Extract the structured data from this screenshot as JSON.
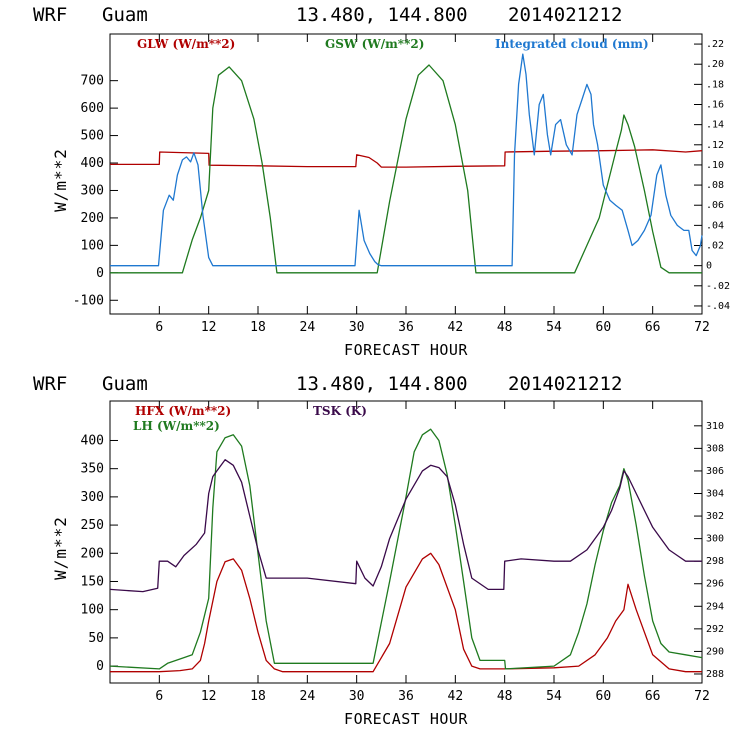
{
  "chart_data": [
    {
      "type": "line",
      "header": {
        "model": "WRF",
        "site": "Guam",
        "coords": "13.480, 144.800",
        "init": "2014021212"
      },
      "xlabel": "FORECAST HOUR",
      "ylabel": "W/m**2",
      "xlim": [
        0,
        72
      ],
      "ylim": [
        -150,
        870
      ],
      "xticks": [
        6,
        12,
        18,
        24,
        30,
        36,
        42,
        48,
        54,
        60,
        66,
        72
      ],
      "yticks": [
        -100,
        0,
        100,
        200,
        300,
        400,
        500,
        600,
        700
      ],
      "y2lim": [
        -0.048,
        0.23
      ],
      "y2ticks": [
        ".22",
        ".20",
        ".18",
        ".16",
        ".14",
        ".12",
        ".10",
        ".08",
        ".06",
        ".04",
        ".02",
        "0",
        "-.02",
        "-.04"
      ],
      "y2tick_values": [
        0.22,
        0.2,
        0.18,
        0.16,
        0.14,
        0.12,
        0.1,
        0.08,
        0.06,
        0.04,
        0.02,
        0,
        -0.02,
        -0.04
      ],
      "legend": [
        {
          "label": "GLW (W/m**2)",
          "color": "#b00000"
        },
        {
          "label": "GSW (W/m**2)",
          "color": "#1f7a1f"
        },
        {
          "label": "Integrated cloud (mm)",
          "color": "#1f78d0"
        }
      ],
      "series": [
        {
          "name": "GLW (W/m**2)",
          "color": "#b00000",
          "axis": "left",
          "x": [
            0,
            6,
            6.05,
            12,
            12.05,
            18,
            24,
            29.9,
            30,
            31.5,
            32.5,
            33,
            36,
            42,
            48,
            48.05,
            54,
            60,
            66,
            70,
            72
          ],
          "y": [
            395,
            395,
            440,
            435,
            392,
            390,
            387,
            387,
            430,
            420,
            400,
            385,
            385,
            388,
            390,
            440,
            443,
            445,
            448,
            440,
            445
          ]
        },
        {
          "name": "GSW (W/m**2)",
          "color": "#1f7a1f",
          "axis": "left",
          "x": [
            0,
            8.8,
            10,
            11,
            12,
            12.5,
            13.2,
            14.5,
            16,
            17.5,
            18.5,
            19.5,
            20.3,
            32.5,
            34,
            36,
            37.5,
            38.8,
            40.5,
            42,
            43.5,
            44.5,
            56.5,
            58,
            59.5,
            60.5,
            61.5,
            62.2,
            62.5,
            63,
            63.8,
            65,
            66,
            67,
            68,
            72
          ],
          "y": [
            0,
            0,
            120,
            200,
            300,
            600,
            720,
            750,
            700,
            560,
            400,
            200,
            0,
            0,
            260,
            560,
            720,
            757,
            700,
            540,
            300,
            0,
            0,
            100,
            200,
            320,
            440,
            520,
            575,
            540,
            460,
            300,
            150,
            20,
            0,
            0
          ]
        },
        {
          "name": "Integrated cloud (mm)",
          "color": "#1f78d0",
          "axis": "right",
          "x": [
            0,
            5.9,
            6.5,
            7.2,
            7.7,
            8.2,
            8.8,
            9.3,
            9.8,
            10.2,
            10.7,
            11.3,
            12,
            12.5,
            29.8,
            30.3,
            30.9,
            31.6,
            32.2,
            32.6,
            33,
            48.9,
            49.2,
            49.7,
            50.2,
            50.6,
            51,
            51.6,
            52.2,
            52.7,
            53.2,
            53.6,
            54.2,
            54.8,
            55.5,
            56.2,
            56.8,
            57.4,
            58,
            58.5,
            58.8,
            59.3,
            60,
            60.8,
            61.5,
            62.3,
            63,
            63.5,
            64.2,
            65,
            65.8,
            66.5,
            67,
            67.6,
            68.2,
            69,
            69.8,
            70.4,
            70.8,
            71.3,
            71.8,
            72
          ],
          "y": [
            0,
            0,
            0.055,
            0.07,
            0.065,
            0.09,
            0.105,
            0.108,
            0.103,
            0.112,
            0.1,
            0.05,
            0.008,
            0,
            0,
            0.055,
            0.025,
            0.012,
            0.004,
            0.001,
            0,
            0,
            0.11,
            0.18,
            0.21,
            0.19,
            0.15,
            0.11,
            0.16,
            0.17,
            0.13,
            0.11,
            0.14,
            0.145,
            0.12,
            0.11,
            0.15,
            0.165,
            0.18,
            0.17,
            0.14,
            0.12,
            0.08,
            0.065,
            0.06,
            0.055,
            0.035,
            0.02,
            0.025,
            0.035,
            0.05,
            0.09,
            0.1,
            0.07,
            0.05,
            0.04,
            0.035,
            0.035,
            0.015,
            0.01,
            0.02,
            0.03
          ]
        }
      ]
    },
    {
      "type": "line",
      "header": {
        "model": "WRF",
        "site": "Guam",
        "coords": "13.480, 144.800",
        "init": "2014021212"
      },
      "xlabel": "FORECAST HOUR",
      "ylabel": "W/m**2",
      "xlim": [
        0,
        72
      ],
      "ylim": [
        -30,
        470
      ],
      "xticks": [
        6,
        12,
        18,
        24,
        30,
        36,
        42,
        48,
        54,
        60,
        66,
        72
      ],
      "yticks": [
        0,
        50,
        100,
        150,
        200,
        250,
        300,
        350,
        400
      ],
      "y2lim": [
        287.2,
        312.2
      ],
      "y2ticks": [
        "310",
        "308",
        "306",
        "304",
        "302",
        "300",
        "298",
        "296",
        "294",
        "292",
        "290",
        "288"
      ],
      "y2tick_values": [
        310,
        308,
        306,
        304,
        302,
        300,
        298,
        296,
        294,
        292,
        290,
        288
      ],
      "legend": [
        {
          "label": "HFX (W/m**2)",
          "color": "#b00000"
        },
        {
          "label": "LH  (W/m**2)",
          "color": "#1f7a1f"
        },
        {
          "label": "TSK (K)",
          "color": "#3a0a4a"
        }
      ],
      "series": [
        {
          "name": "HFX (W/m**2)",
          "color": "#b00000",
          "axis": "left",
          "x": [
            0,
            6,
            8.5,
            10,
            11,
            11.5,
            12,
            13,
            14,
            15,
            16,
            17,
            18,
            19,
            20,
            21,
            24,
            30,
            32,
            34,
            36,
            38,
            39,
            40,
            42,
            43,
            44,
            45,
            48,
            54,
            57,
            59,
            60.5,
            61.5,
            62.5,
            63,
            64,
            65,
            66,
            68,
            70,
            72
          ],
          "y": [
            -10,
            -10,
            -8,
            -5,
            10,
            40,
            80,
            150,
            185,
            190,
            170,
            120,
            60,
            10,
            -5,
            -10,
            -10,
            -10,
            -10,
            40,
            140,
            190,
            200,
            180,
            100,
            30,
            0,
            -5,
            -5,
            -3,
            0,
            20,
            50,
            80,
            100,
            145,
            100,
            60,
            20,
            -5,
            -10,
            -10
          ]
        },
        {
          "name": "LH  (W/m**2)",
          "color": "#1f7a1f",
          "axis": "left",
          "x": [
            0,
            6,
            7,
            9,
            10,
            11,
            12,
            12.5,
            13,
            14,
            15,
            16,
            17,
            18,
            19,
            20,
            24,
            30,
            32,
            34,
            36,
            37,
            38,
            39,
            40,
            41,
            42,
            43,
            44,
            45,
            48,
            48.1,
            54,
            56,
            57,
            58,
            59,
            60,
            61,
            62,
            62.5,
            63,
            64,
            65,
            66,
            67,
            68,
            70,
            72
          ],
          "y": [
            0,
            -5,
            5,
            15,
            20,
            60,
            120,
            280,
            380,
            405,
            410,
            390,
            320,
            200,
            80,
            5,
            5,
            5,
            5,
            150,
            300,
            380,
            410,
            420,
            400,
            340,
            250,
            150,
            50,
            10,
            10,
            -5,
            0,
            20,
            60,
            110,
            180,
            240,
            290,
            320,
            350,
            330,
            250,
            160,
            80,
            40,
            25,
            20,
            15
          ]
        },
        {
          "name": "TSK (K)",
          "color": "#3a0a4a",
          "axis": "right",
          "x": [
            0,
            4,
            5.8,
            6,
            7,
            8,
            9,
            10.5,
            11.5,
            12,
            12.5,
            13,
            14,
            15,
            16,
            17,
            18,
            19,
            20,
            21,
            24,
            29.9,
            30,
            31,
            32,
            33,
            34,
            36,
            38,
            39,
            40,
            41,
            42,
            43,
            44,
            46,
            47.9,
            48,
            50,
            54,
            56,
            58,
            60,
            61,
            62,
            62.5,
            63,
            64,
            65,
            66,
            67,
            68,
            69,
            70,
            72
          ],
          "y": [
            295.5,
            295.3,
            295.6,
            298,
            298,
            297.5,
            298.5,
            299.5,
            300.5,
            304,
            305.5,
            306,
            307,
            306.5,
            305,
            302,
            299,
            296.5,
            296.5,
            296.5,
            296.5,
            296,
            298,
            296.5,
            295.8,
            297.5,
            300,
            303.5,
            306,
            306.5,
            306.3,
            305.5,
            303,
            299.5,
            296.5,
            295.5,
            295.5,
            298,
            298.2,
            298,
            298,
            299,
            301,
            302.5,
            304.5,
            306,
            305.5,
            304,
            302.5,
            301,
            300,
            299,
            298.5,
            298,
            298
          ]
        }
      ]
    }
  ]
}
